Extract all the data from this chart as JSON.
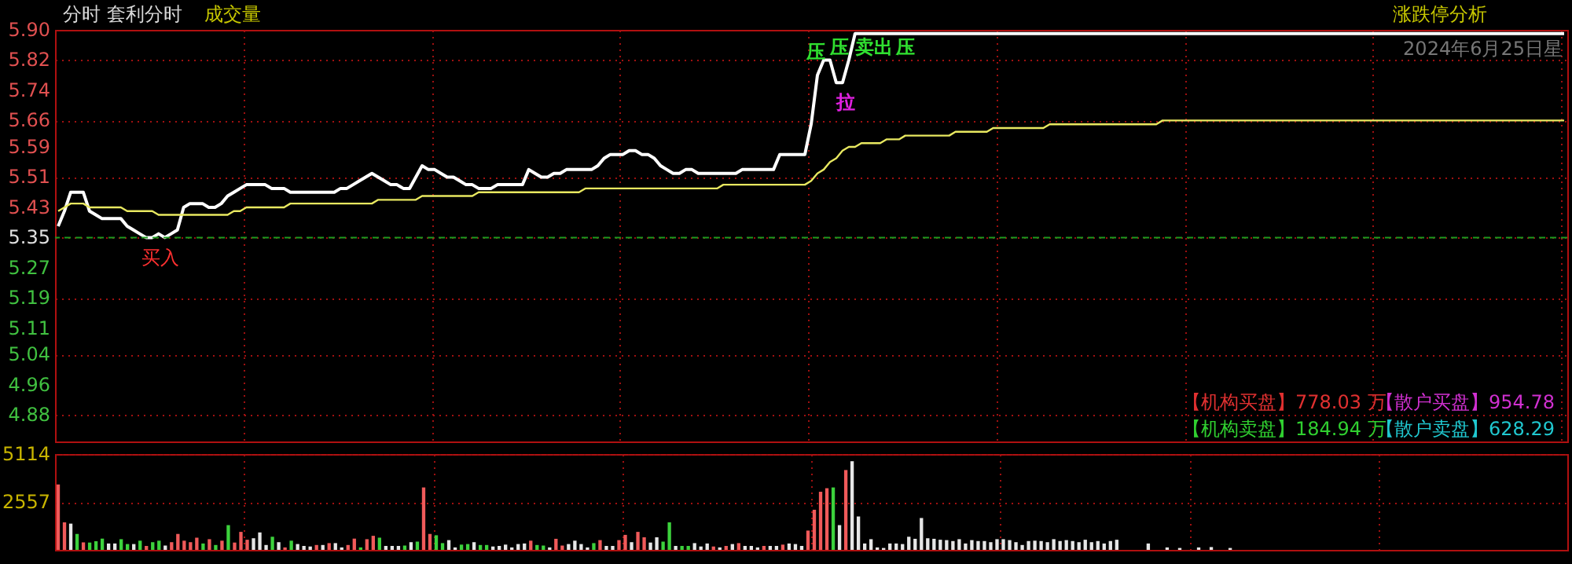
{
  "chart_data": [
    {
      "type": "line",
      "title": "分时 套利分时",
      "subtitle": "成交量",
      "categories": [
        null,
        null,
        null,
        null,
        null,
        null,
        null,
        null,
        null,
        null,
        null,
        null,
        null,
        null,
        null,
        null,
        null,
        null,
        null,
        null,
        null,
        null,
        null,
        null,
        null,
        null,
        null,
        null,
        null,
        null,
        null,
        null,
        null,
        null,
        null,
        null,
        null,
        null,
        null,
        null,
        null,
        null,
        null,
        null,
        null,
        null,
        null,
        null,
        null,
        null,
        null,
        null,
        null,
        null,
        null,
        null,
        null,
        null,
        null,
        null,
        null,
        null,
        null,
        null,
        null,
        null,
        null,
        null,
        null,
        null,
        null,
        null,
        null,
        null,
        null,
        null,
        null,
        null,
        null,
        null,
        null,
        null,
        null,
        null,
        null,
        null,
        null,
        null,
        null,
        null,
        null,
        null,
        null,
        null,
        null,
        null,
        null,
        null,
        null,
        null,
        null,
        null,
        null,
        null,
        null,
        null,
        null,
        null,
        null,
        null,
        null,
        null,
        null,
        null,
        null,
        null,
        null,
        null,
        null,
        null,
        null,
        null,
        null,
        null,
        null,
        null,
        null,
        null,
        null,
        null,
        null,
        null,
        null,
        null,
        null,
        null,
        null,
        null,
        null,
        null,
        null,
        null,
        null,
        null,
        null,
        null,
        null,
        null,
        null,
        null,
        null,
        null,
        null,
        null,
        null,
        null,
        null,
        null,
        null,
        null,
        null,
        null,
        null,
        null,
        null,
        null,
        null,
        null,
        null,
        null,
        null,
        null,
        null,
        null,
        null,
        null,
        null,
        null,
        null,
        null,
        null,
        null,
        null,
        null,
        null,
        null,
        null,
        null,
        null,
        null,
        null,
        null,
        null,
        null,
        null,
        null,
        null,
        null,
        null,
        null,
        null,
        null,
        null,
        null,
        null,
        null,
        null,
        null,
        null,
        null,
        null,
        null,
        null,
        null,
        null,
        null,
        null,
        null,
        null,
        null,
        null,
        null,
        null,
        null,
        null,
        null,
        null,
        null,
        null,
        null,
        null,
        null,
        null,
        null,
        null,
        null,
        null,
        null,
        null,
        null,
        null
      ],
      "series": [
        {
          "type": "line",
          "color": "#ffffff",
          "values": [
            5.38,
            5.42,
            5.47,
            5.47,
            5.47,
            5.42,
            5.41,
            5.4,
            5.4,
            5.4,
            5.4,
            5.38,
            5.37,
            5.36,
            5.35,
            5.35,
            5.36,
            5.35,
            5.36,
            5.37,
            5.43,
            5.44,
            5.44,
            5.44,
            5.43,
            5.43,
            5.44,
            5.46,
            5.47,
            5.48,
            5.49,
            5.49,
            5.49,
            5.49,
            5.48,
            5.48,
            5.48,
            5.47,
            5.47,
            5.47,
            5.47,
            5.47,
            5.47,
            5.47,
            5.47,
            5.48,
            5.48,
            5.49,
            5.5,
            5.51,
            5.52,
            5.51,
            5.5,
            5.49,
            5.49,
            5.48,
            5.48,
            5.51,
            5.54,
            5.53,
            5.53,
            5.52,
            5.51,
            5.51,
            5.5,
            5.49,
            5.49,
            5.48,
            5.48,
            5.48,
            5.49,
            5.49,
            5.49,
            5.49,
            5.49,
            5.53,
            5.52,
            5.51,
            5.51,
            5.52,
            5.52,
            5.53,
            5.53,
            5.53,
            5.53,
            5.53,
            5.54,
            5.56,
            5.57,
            5.57,
            5.57,
            5.58,
            5.58,
            5.57,
            5.57,
            5.56,
            5.54,
            5.53,
            5.52,
            5.52,
            5.53,
            5.53,
            5.52,
            5.52,
            5.52,
            5.52,
            5.52,
            5.52,
            5.52,
            5.53,
            5.53,
            5.53,
            5.53,
            5.53,
            5.53,
            5.57,
            5.57,
            5.57,
            5.57,
            5.57,
            5.65,
            5.78,
            5.82,
            5.82,
            5.76,
            5.76,
            5.82,
            5.89,
            5.89,
            5.89,
            5.89,
            5.89,
            5.89,
            5.89,
            5.89,
            5.89,
            5.89,
            5.89,
            5.89,
            5.89,
            5.89,
            5.89,
            5.89,
            5.89,
            5.89,
            5.89,
            5.89,
            5.89,
            5.89,
            5.89,
            5.89,
            5.89,
            5.89,
            5.89,
            5.89,
            5.89,
            5.89,
            5.89,
            5.89,
            5.89,
            5.89,
            5.89,
            5.89,
            5.89,
            5.89,
            5.89,
            5.89,
            5.89,
            5.89,
            5.89,
            5.89,
            5.89,
            5.89,
            5.89,
            5.89,
            5.89,
            5.89,
            5.89,
            5.89,
            5.89,
            5.89,
            5.89,
            5.89,
            5.89,
            5.89,
            5.89,
            5.89,
            5.89,
            5.89,
            5.89,
            5.89,
            5.89,
            5.89,
            5.89,
            5.89,
            5.89,
            5.89,
            5.89,
            5.89,
            5.89,
            5.89,
            5.89,
            5.89,
            5.89,
            5.89,
            5.89,
            5.89,
            5.89,
            5.89,
            5.89,
            5.89,
            5.89,
            5.89,
            5.89,
            5.89,
            5.89,
            5.89,
            5.89,
            5.89,
            5.89,
            5.89,
            5.89,
            5.89,
            5.89,
            5.89,
            5.89,
            5.89,
            5.89,
            5.89,
            5.89,
            5.89,
            5.89,
            5.89,
            5.89,
            5.89,
            5.89,
            5.89,
            5.89,
            5.89,
            5.89,
            5.89
          ]
        },
        {
          "type": "line",
          "color": "#e8e860",
          "values": [
            5.42,
            5.43,
            5.44,
            5.44,
            5.44,
            5.43,
            5.43,
            5.43,
            5.43,
            5.43,
            5.43,
            5.42,
            5.42,
            5.42,
            5.42,
            5.42,
            5.41,
            5.41,
            5.41,
            5.41,
            5.41,
            5.41,
            5.41,
            5.41,
            5.41,
            5.41,
            5.41,
            5.41,
            5.42,
            5.42,
            5.43,
            5.43,
            5.43,
            5.43,
            5.43,
            5.43,
            5.43,
            5.44,
            5.44,
            5.44,
            5.44,
            5.44,
            5.44,
            5.44,
            5.44,
            5.44,
            5.44,
            5.44,
            5.44,
            5.44,
            5.44,
            5.45,
            5.45,
            5.45,
            5.45,
            5.45,
            5.45,
            5.45,
            5.46,
            5.46,
            5.46,
            5.46,
            5.46,
            5.46,
            5.46,
            5.46,
            5.46,
            5.47,
            5.47,
            5.47,
            5.47,
            5.47,
            5.47,
            5.47,
            5.47,
            5.47,
            5.47,
            5.47,
            5.47,
            5.47,
            5.47,
            5.47,
            5.47,
            5.47,
            5.48,
            5.48,
            5.48,
            5.48,
            5.48,
            5.48,
            5.48,
            5.48,
            5.48,
            5.48,
            5.48,
            5.48,
            5.48,
            5.48,
            5.48,
            5.48,
            5.48,
            5.48,
            5.48,
            5.48,
            5.48,
            5.48,
            5.49,
            5.49,
            5.49,
            5.49,
            5.49,
            5.49,
            5.49,
            5.49,
            5.49,
            5.49,
            5.49,
            5.49,
            5.49,
            5.49,
            5.5,
            5.52,
            5.53,
            5.55,
            5.56,
            5.58,
            5.59,
            5.59,
            5.6,
            5.6,
            5.6,
            5.6,
            5.61,
            5.61,
            5.61,
            5.62,
            5.62,
            5.62,
            5.62,
            5.62,
            5.62,
            5.62,
            5.62,
            5.63,
            5.63,
            5.63,
            5.63,
            5.63,
            5.63,
            5.64,
            5.64,
            5.64,
            5.64,
            5.64,
            5.64,
            5.64,
            5.64,
            5.64,
            5.65,
            5.65,
            5.65,
            5.65,
            5.65,
            5.65,
            5.65,
            5.65,
            5.65,
            5.65,
            5.65,
            5.65,
            5.65,
            5.65,
            5.65,
            5.65,
            5.65,
            5.65,
            5.66,
            5.66,
            5.66,
            5.66,
            5.66,
            5.66,
            5.66,
            5.66,
            5.66,
            5.66,
            5.66,
            5.66,
            5.66,
            5.66,
            5.66,
            5.66,
            5.66,
            5.66,
            5.66,
            5.66,
            5.66,
            5.66,
            5.66,
            5.66,
            5.66,
            5.66,
            5.66,
            5.66,
            5.66,
            5.66,
            5.66,
            5.66,
            5.66,
            5.66,
            5.66,
            5.66,
            5.66,
            5.66,
            5.66,
            5.66,
            5.66,
            5.66,
            5.66,
            5.66,
            5.66,
            5.66,
            5.66,
            5.66,
            5.66,
            5.66,
            5.66,
            5.66,
            5.66,
            5.66,
            5.66,
            5.66,
            5.66,
            5.66,
            5.66,
            5.66,
            5.66,
            5.66,
            5.66,
            5.66,
            5.66
          ]
        }
      ],
      "ylim": [
        4.81,
        5.9
      ],
      "yticks": [
        4.88,
        4.96,
        5.04,
        5.11,
        5.19,
        5.27,
        5.35,
        5.43,
        5.51,
        5.59,
        5.66,
        5.74,
        5.82,
        {
          "value": 5.9,
          "label": "5.90"
        }
      ],
      "grid": true,
      "tick_labels": "y",
      "ref_lines": [
        {
          "axis": "y",
          "value": 5.35,
          "color": "#1e9a1e",
          "line_style": "dashed"
        }
      ],
      "annotations": [
        "买入",
        "压",
        "压",
        "卖出",
        "压",
        "拉",
        "涨跌停分析",
        "2024年6月25日星",
        "【机构买盘】778.03 万",
        "【散户买盘】954.78",
        "【机构卖盘】184.94 万",
        "【散户卖盘】628.29"
      ]
    },
    {
      "type": "bar",
      "categories": [
        null,
        null,
        null,
        null,
        null,
        null,
        null,
        null,
        null,
        null,
        null,
        null,
        null,
        null,
        null,
        null,
        null,
        null,
        null,
        null,
        null,
        null,
        null,
        null,
        null,
        null,
        null,
        null,
        null,
        null,
        null,
        null,
        null,
        null,
        null,
        null,
        null,
        null,
        null,
        null,
        null,
        null,
        null,
        null,
        null,
        null,
        null,
        null,
        null,
        null,
        null,
        null,
        null,
        null,
        null,
        null,
        null,
        null,
        null,
        null,
        null,
        null,
        null,
        null,
        null,
        null,
        null,
        null,
        null,
        null,
        null,
        null,
        null,
        null,
        null,
        null,
        null,
        null,
        null,
        null,
        null,
        null,
        null,
        null,
        null,
        null,
        null,
        null,
        null,
        null,
        null,
        null,
        null,
        null,
        null,
        null,
        null,
        null,
        null,
        null,
        null,
        null,
        null,
        null,
        null,
        null,
        null,
        null,
        null,
        null,
        null,
        null,
        null,
        null,
        null,
        null,
        null,
        null,
        null,
        null,
        null,
        null,
        null,
        null,
        null,
        null,
        null,
        null,
        null,
        null,
        null,
        null,
        null,
        null,
        null,
        null,
        null,
        null,
        null,
        null,
        null,
        null,
        null,
        null,
        null,
        null,
        null,
        null,
        null,
        null,
        null,
        null,
        null,
        null,
        null,
        null,
        null,
        null,
        null,
        null,
        null,
        null,
        null,
        null,
        null,
        null,
        null,
        null,
        null,
        null,
        null,
        null,
        null,
        null,
        null,
        null,
        null,
        null,
        null,
        null,
        null,
        null,
        null,
        null,
        null,
        null,
        null,
        null,
        null,
        null,
        null,
        null,
        null,
        null,
        null,
        null,
        null,
        null,
        null,
        null,
        null,
        null,
        null,
        null,
        null,
        null,
        null,
        null,
        null,
        null,
        null,
        null,
        null,
        null,
        null,
        null,
        null,
        null,
        null,
        null,
        null,
        null,
        null,
        null,
        null,
        null,
        null,
        null,
        null,
        null,
        null,
        null,
        null,
        null,
        null,
        null,
        null,
        null,
        null,
        null
      ],
      "values": [
        3490,
        1470,
        1400,
        850,
        400,
        390,
        460,
        600,
        340,
        340,
        570,
        310,
        310,
        490,
        210,
        410,
        490,
        230,
        410,
        850,
        490,
        410,
        650,
        340,
        570,
        260,
        490,
        1320,
        390,
        960,
        540,
        620,
        930,
        260,
        700,
        410,
        130,
        490,
        310,
        210,
        180,
        260,
        260,
        360,
        360,
        130,
        260,
        600,
        130,
        570,
        750,
        650,
        210,
        210,
        210,
        230,
        410,
        440,
        3330,
        850,
        780,
        360,
        520,
        130,
        280,
        310,
        410,
        260,
        260,
        180,
        210,
        280,
        130,
        310,
        340,
        490,
        260,
        230,
        130,
        590,
        230,
        310,
        490,
        310,
        130,
        360,
        520,
        210,
        210,
        520,
        800,
        410,
        960,
        670,
        390,
        670,
        440,
        1470,
        210,
        210,
        210,
        360,
        180,
        340,
        180,
        130,
        210,
        310,
        360,
        210,
        210,
        130,
        210,
        210,
        210,
        280,
        340,
        310,
        210,
        1030,
        2140,
        3100,
        3290,
        3330,
        1320,
        4260,
        4730,
        1780,
        340,
        570,
        130,
        100,
        340,
        340,
        310,
        700,
        590,
        1700,
        620,
        590,
        540,
        520,
        470,
        570,
        340,
        520,
        470,
        470,
        410,
        570,
        570,
        520,
        410,
        260,
        470,
        490,
        470,
        410,
        570,
        470,
        520,
        470,
        410,
        540,
        410,
        470,
        340,
        470,
        540,
        0,
        0,
        0,
        0,
        340,
        0,
        0,
        130,
        0,
        100,
        0,
        0,
        130,
        0,
        150,
        0,
        0,
        100,
        0,
        0,
        0,
        0,
        null,
        null,
        null,
        null,
        null,
        null,
        null,
        null,
        null,
        null,
        null,
        null,
        null,
        null,
        null,
        null,
        null,
        null,
        null,
        null,
        null,
        null,
        null,
        null,
        null,
        null,
        null,
        null,
        null,
        null,
        null,
        null,
        null,
        null,
        null,
        null,
        null,
        null,
        null,
        null,
        null,
        null,
        null,
        null,
        null,
        null,
        null,
        null,
        null
      ],
      "colors": [
        "#f05a5a",
        "#f05a5a",
        "#e6e6e6",
        "#3cd23c",
        "#f05a5a",
        "#3cd23c",
        "#3cd23c",
        "#3cd23c",
        "#e6e6e6",
        "#e6e6e6",
        "#3cd23c",
        "#3cd23c",
        "#e6e6e6",
        "#3cd23c",
        "#f05a5a",
        "#3cd23c",
        "#3cd23c",
        "#e6e6e6",
        "#f05a5a",
        "#f05a5a",
        "#f05a5a",
        "#f05a5a",
        "#f05a5a",
        "#3cd23c",
        "#f05a5a",
        "#3cd23c",
        "#f05a5a",
        "#3cd23c",
        "#f05a5a",
        "#f05a5a",
        "#f05a5a",
        "#e6e6e6",
        "#e6e6e6",
        "#e6e6e6",
        "#3cd23c",
        "#e6e6e6",
        "#f05a5a",
        "#3cd23c",
        "#e6e6e6",
        "#e6e6e6",
        "#e6e6e6",
        "#f05a5a",
        "#e6e6e6",
        "#f05a5a",
        "#e6e6e6",
        "#e6e6e6",
        "#f05a5a",
        "#f05a5a",
        "#3cd23c",
        "#f05a5a",
        "#f05a5a",
        "#3cd23c",
        "#e6e6e6",
        "#e6e6e6",
        "#e6e6e6",
        "#3cd23c",
        "#e6e6e6",
        "#3cd23c",
        "#f05a5a",
        "#f05a5a",
        "#3cd23c",
        "#3cd23c",
        "#e6e6e6",
        "#e6e6e6",
        "#3cd23c",
        "#3cd23c",
        "#e6e6e6",
        "#3cd23c",
        "#3cd23c",
        "#e6e6e6",
        "#e6e6e6",
        "#e6e6e6",
        "#e6e6e6",
        "#e6e6e6",
        "#e6e6e6",
        "#f05a5a",
        "#3cd23c",
        "#3cd23c",
        "#e6e6e6",
        "#f05a5a",
        "#f05a5a",
        "#e6e6e6",
        "#e6e6e6",
        "#e6e6e6",
        "#e6e6e6",
        "#3cd23c",
        "#f05a5a",
        "#e6e6e6",
        "#e6e6e6",
        "#f05a5a",
        "#f05a5a",
        "#e6e6e6",
        "#f05a5a",
        "#f05a5a",
        "#e6e6e6",
        "#e6e6e6",
        "#3cd23c",
        "#3cd23c",
        "#e6e6e6",
        "#3cd23c",
        "#3cd23c",
        "#e6e6e6",
        "#e6e6e6",
        "#e6e6e6",
        "#f05a5a",
        "#e6e6e6",
        "#f05a5a",
        "#e6e6e6",
        "#f05a5a",
        "#e6e6e6",
        "#e6e6e6",
        "#e6e6e6",
        "#f05a5a",
        "#e6e6e6",
        "#e6e6e6",
        "#f05a5a",
        "#e6e6e6",
        "#e6e6e6",
        "#e6e6e6",
        "#f05a5a",
        "#f05a5a",
        "#f05a5a",
        "#f05a5a",
        "#3cd23c",
        "#e6e6e6",
        "#f05a5a",
        "#e6e6e6",
        "#e6e6e6",
        "#e6e6e6",
        "#e6e6e6",
        "#e6e6e6",
        "#e6e6e6",
        "#e6e6e6",
        "#e6e6e6",
        "#e6e6e6",
        "#e6e6e6",
        "#e6e6e6",
        "#e6e6e6",
        "#e6e6e6",
        "#e6e6e6",
        "#e6e6e6",
        "#e6e6e6",
        "#e6e6e6",
        "#e6e6e6",
        "#e6e6e6",
        "#e6e6e6",
        "#e6e6e6",
        "#e6e6e6",
        "#e6e6e6",
        "#e6e6e6",
        "#e6e6e6",
        "#e6e6e6",
        "#e6e6e6",
        "#e6e6e6",
        "#e6e6e6",
        "#e6e6e6",
        "#e6e6e6",
        "#e6e6e6",
        "#e6e6e6",
        "#e6e6e6",
        "#e6e6e6",
        "#e6e6e6",
        "#e6e6e6",
        "#e6e6e6",
        "#e6e6e6",
        "#e6e6e6",
        "#e6e6e6",
        "#e6e6e6",
        "#e6e6e6",
        "#e6e6e6",
        "#e6e6e6",
        "#e6e6e6",
        "#e6e6e6",
        "#e6e6e6",
        "#e6e6e6",
        "#e6e6e6",
        "#e6e6e6",
        "#e6e6e6",
        "#e6e6e6",
        "#e6e6e6",
        "#e6e6e6",
        "#e6e6e6",
        "#e6e6e6",
        "#e6e6e6",
        "#e6e6e6",
        "#e6e6e6",
        "#e6e6e6",
        "#e6e6e6",
        "#e6e6e6",
        "#e6e6e6",
        "#e6e6e6",
        null,
        null,
        null,
        null,
        null,
        null,
        null,
        null,
        null,
        null,
        null,
        null,
        null,
        null,
        null,
        null,
        null,
        null,
        null,
        null,
        null,
        null,
        null,
        null,
        null,
        null,
        null,
        null,
        null,
        null,
        null,
        null,
        null,
        null,
        null,
        null,
        null,
        null,
        null,
        null,
        null,
        null,
        null,
        null,
        null,
        null,
        null,
        null,
        null
      ],
      "ylim": [
        0,
        5114
      ],
      "yticks": [
        2557,
        5114
      ],
      "grid": true,
      "tick_labels": "y"
    }
  ]
}
